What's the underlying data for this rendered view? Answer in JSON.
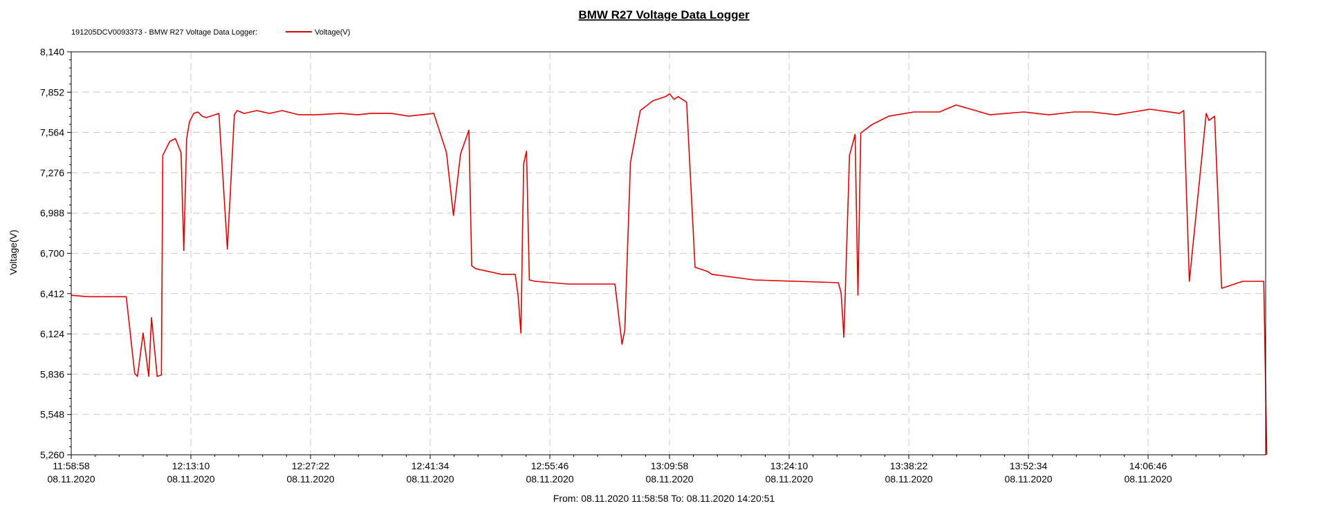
{
  "chart_data": {
    "type": "line",
    "title": "BMW R27 Voltage Data Logger",
    "ylabel": "Voltage(V)",
    "legend": {
      "prefix": "191205DCV0093373 - BMW R27 Voltage Data Logger:",
      "entry": "Voltage(V)",
      "placement": "top-left"
    },
    "range_label": "From: 08.11.2020 11:58:58   To: 08.11.2020 14:20:51",
    "grid": true,
    "series_color": "#e00000",
    "ylim": [
      5.26,
      8.14
    ],
    "y_ticks": [
      "8,140",
      "7,852",
      "7,564",
      "7,276",
      "6,988",
      "6,700",
      "6,412",
      "6,124",
      "5,836",
      "5,548",
      "5,260"
    ],
    "xlim": [
      "11:58:58",
      "14:20:51"
    ],
    "x_ticks": [
      {
        "time": "11:58:58",
        "date": "08.11.2020"
      },
      {
        "time": "12:13:10",
        "date": "08.11.2020"
      },
      {
        "time": "12:27:22",
        "date": "08.11.2020"
      },
      {
        "time": "12:41:34",
        "date": "08.11.2020"
      },
      {
        "time": "12:55:46",
        "date": "08.11.2020"
      },
      {
        "time": "13:09:58",
        "date": "08.11.2020"
      },
      {
        "time": "13:24:10",
        "date": "08.11.2020"
      },
      {
        "time": "13:38:22",
        "date": "08.11.2020"
      },
      {
        "time": "13:52:34",
        "date": "08.11.2020"
      },
      {
        "time": "14:06:46",
        "date": "08.11.2020"
      }
    ],
    "series": [
      {
        "x": [
          "11:58:58",
          "12:01:00",
          "12:04:00",
          "12:05:30",
          "12:06:30",
          "12:06:50",
          "12:07:30",
          "12:08:10",
          "12:08:30",
          "12:09:10",
          "12:09:40",
          "12:09:50",
          "12:10:40",
          "12:11:20",
          "12:12:00",
          "12:12:20",
          "12:12:40",
          "12:13:00",
          "12:13:30",
          "12:14:00",
          "12:14:30",
          "12:15:00",
          "12:16:30",
          "12:17:30",
          "12:18:20",
          "12:18:40",
          "12:19:30",
          "12:21:00",
          "12:22:30",
          "12:24:00",
          "12:26:00",
          "12:28:00",
          "12:31:00",
          "12:33:00",
          "12:34:30",
          "12:37:00",
          "12:39:00",
          "12:42:00",
          "12:43:30",
          "12:44:20",
          "12:45:10",
          "12:46:10",
          "12:46:30",
          "12:47:00",
          "12:48:30",
          "12:50:00",
          "12:51:40",
          "12:52:00",
          "12:52:20",
          "12:52:40",
          "12:53:00",
          "12:53:20",
          "12:54:00",
          "12:56:00",
          "12:58:00",
          "13:00:00",
          "13:03:30",
          "13:04:20",
          "13:04:40",
          "13:05:20",
          "13:06:30",
          "13:08:00",
          "13:09:30",
          "13:10:00",
          "13:10:30",
          "13:11:00",
          "13:12:00",
          "13:13:00",
          "13:14:00",
          "13:14:30",
          "13:15:00",
          "13:20:00",
          "13:25:00",
          "13:30:00",
          "13:30:20",
          "13:30:40",
          "13:31:20",
          "13:32:00",
          "13:32:20",
          "13:32:40",
          "13:34:00",
          "13:36:00",
          "13:39:00",
          "13:42:00",
          "13:44:00",
          "13:48:00",
          "13:52:00",
          "13:55:00",
          "13:58:00",
          "13:59:00",
          "14:00:00",
          "14:03:00",
          "14:05:00",
          "14:07:00",
          "14:10:30",
          "14:11:00",
          "14:11:40",
          "14:13:40",
          "14:14:00",
          "14:14:40",
          "14:15:30",
          "14:16:30",
          "14:18:00",
          "14:20:30",
          "14:20:51"
        ],
        "values": [
          6.4,
          6.39,
          6.39,
          6.39,
          5.84,
          5.82,
          6.13,
          5.82,
          6.24,
          5.82,
          5.83,
          7.4,
          7.5,
          7.52,
          7.42,
          6.72,
          7.52,
          7.64,
          7.7,
          7.71,
          7.68,
          7.67,
          7.7,
          6.73,
          7.69,
          7.72,
          7.7,
          7.72,
          7.7,
          7.72,
          7.69,
          7.69,
          7.7,
          7.69,
          7.7,
          7.7,
          7.68,
          7.7,
          7.42,
          6.97,
          7.41,
          7.58,
          6.61,
          6.59,
          6.57,
          6.55,
          6.55,
          6.4,
          6.13,
          7.34,
          7.43,
          6.51,
          6.5,
          6.49,
          6.48,
          6.48,
          6.48,
          6.05,
          6.15,
          7.35,
          7.72,
          7.79,
          7.82,
          7.84,
          7.8,
          7.82,
          7.78,
          6.6,
          6.58,
          6.57,
          6.55,
          6.51,
          6.5,
          6.49,
          6.42,
          6.1,
          7.4,
          7.55,
          6.4,
          7.56,
          7.62,
          7.68,
          7.71,
          7.71,
          7.76,
          7.69,
          7.71,
          7.69,
          7.71,
          7.71,
          7.71,
          7.69,
          7.71,
          7.73,
          7.7,
          7.72,
          6.5,
          7.7,
          7.65,
          7.68,
          6.45,
          6.47,
          6.5,
          6.5,
          5.26
        ]
      }
    ]
  }
}
